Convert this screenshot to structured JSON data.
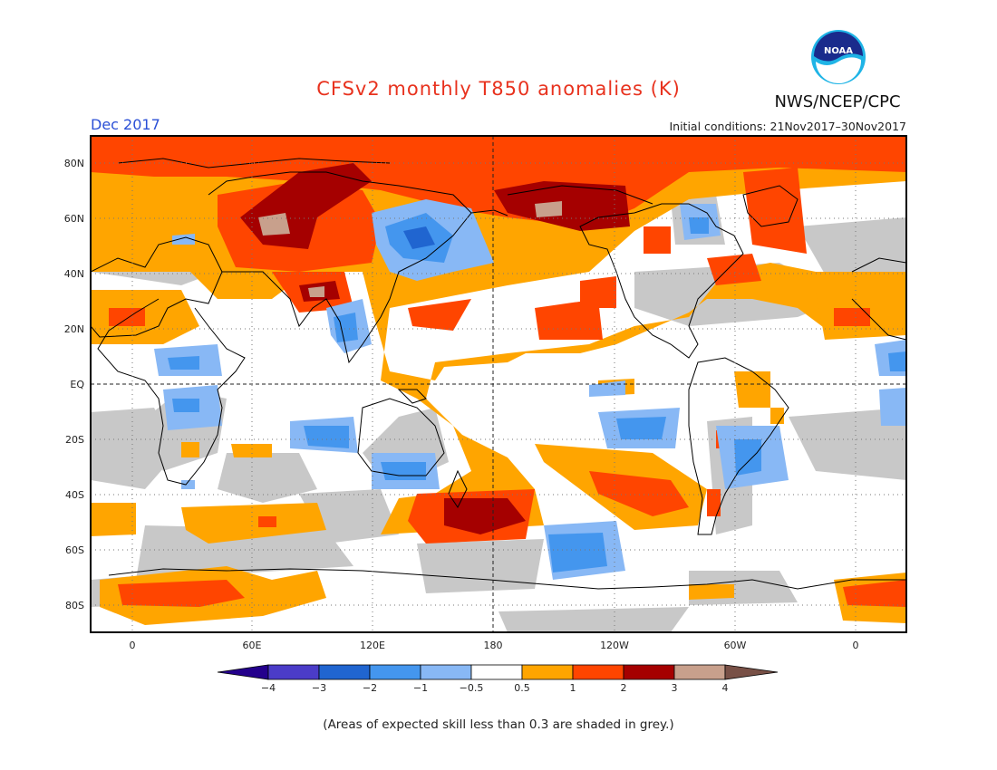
{
  "title": "CFSv2 monthly T850 anomalies (K)",
  "month": "Dec 2017",
  "initial_conditions": "Initial conditions: 21Nov2017–30Nov2017",
  "agency": "NWS/NCEP/CPC",
  "logo_icon": "noaa-logo-icon",
  "logo_text": "NOAA",
  "footnote": "(Areas of expected skill less than 0.3 are shaded in grey.)",
  "map": {
    "lat_labels": [
      "80N",
      "60N",
      "40N",
      "20N",
      "EQ",
      "20S",
      "40S",
      "60S",
      "80S"
    ],
    "lon_labels": [
      "0",
      "60E",
      "120E",
      "180",
      "120W",
      "60W",
      "0"
    ],
    "lat_range": [
      -90,
      90
    ],
    "lon_range": [
      -15,
      275
    ],
    "colors": {
      "white": "#ffffff",
      "grey": "#c8c8c8",
      "pos_0_5_1": "#ffa500",
      "pos_1_2": "#ff4500",
      "pos_2_3": "#a50000",
      "pos_3_4": "#c8a08c",
      "neg_0_5_1": "#88b8f5",
      "neg_1_2": "#4496ee",
      "neg_2_3": "#2065d0"
    }
  },
  "colorbar": {
    "labels": [
      "−4",
      "−3",
      "−2",
      "−1",
      "−0.5",
      "0.5",
      "1",
      "2",
      "3",
      "4"
    ],
    "colors": [
      "#24008c",
      "#4b3cc8",
      "#2065d0",
      "#4496ee",
      "#88b8f5",
      "#ffffff",
      "#ffa500",
      "#ff4500",
      "#a50000",
      "#c8a08c",
      "#785046"
    ]
  }
}
